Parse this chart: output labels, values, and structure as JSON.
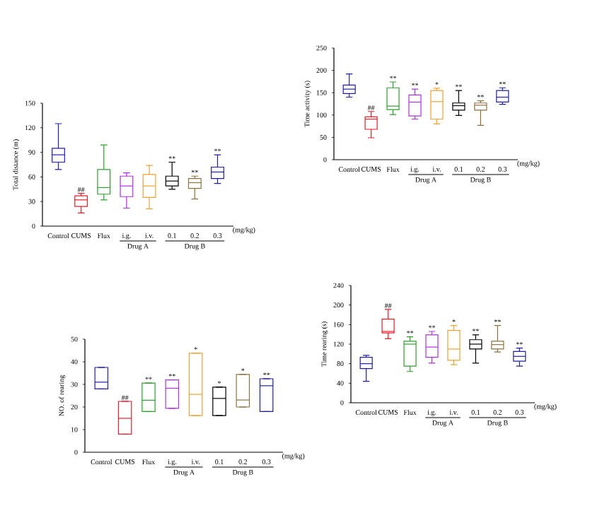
{
  "chart_data": [
    {
      "type": "box",
      "ylabel": "Total distance (m)",
      "categories": [
        "Control",
        "CUMS",
        "Flux",
        "i.g.",
        "i.v.",
        "0.1",
        "0.2",
        "0.3"
      ],
      "colors": [
        "#1f1fb0",
        "#e0202a",
        "#2ca02c",
        "#b030e0",
        "#f0a030",
        "#000000",
        "#8b7340",
        "#1f1fa0"
      ],
      "boxes": [
        {
          "low": 69,
          "q1": 78,
          "median": 87,
          "q3": 95,
          "high": 125
        },
        {
          "low": 16,
          "q1": 24,
          "median": 32,
          "q3": 37,
          "high": 40
        },
        {
          "low": 32,
          "q1": 39,
          "median": 47,
          "q3": 69,
          "high": 99
        },
        {
          "low": 22,
          "q1": 36,
          "median": 49,
          "q3": 61,
          "high": 65
        },
        {
          "low": 21,
          "q1": 35,
          "median": 49,
          "q3": 63,
          "high": 74
        },
        {
          "low": 45,
          "q1": 49,
          "median": 55,
          "q3": 61,
          "high": 78
        },
        {
          "low": 33,
          "q1": 46,
          "median": 53,
          "q3": 58,
          "high": 61
        },
        {
          "low": 52,
          "q1": 58,
          "median": 66,
          "q3": 72,
          "high": 87
        }
      ],
      "ylim": [
        0,
        150
      ],
      "yticks": [
        0,
        30,
        60,
        90,
        120,
        150
      ],
      "annotations": [
        {
          "text": "##",
          "x": "CUMS",
          "y": 40
        },
        {
          "text": "**",
          "x": "0.1",
          "y": 78
        },
        {
          "text": "**",
          "x": "0.2",
          "y": 61
        },
        {
          "text": "**",
          "x": "0.3",
          "y": 87
        },
        "Drug A",
        "Drug B",
        "(mg/kg)"
      ]
    },
    {
      "type": "box",
      "ylabel": "Time activity (s)",
      "categories": [
        "Control",
        "CUMS",
        "Flux",
        "i.g.",
        "i.v.",
        "0.1",
        "0.2",
        "0.3"
      ],
      "colors": [
        "#1f1fb0",
        "#e0202a",
        "#2ca02c",
        "#b030e0",
        "#f0a030",
        "#000000",
        "#8b7340",
        "#1f1fa0"
      ],
      "boxes": [
        {
          "low": 140,
          "q1": 148,
          "median": 158,
          "q3": 167,
          "high": 192
        },
        {
          "low": 49,
          "q1": 68,
          "median": 91,
          "q3": 96,
          "high": 108
        },
        {
          "low": 101,
          "q1": 112,
          "median": 120,
          "q3": 161,
          "high": 174
        },
        {
          "low": 91,
          "q1": 98,
          "median": 129,
          "q3": 145,
          "high": 158
        },
        {
          "low": 80,
          "q1": 91,
          "median": 130,
          "q3": 155,
          "high": 160
        },
        {
          "low": 99,
          "q1": 111,
          "median": 121,
          "q3": 127,
          "high": 155
        },
        {
          "low": 77,
          "q1": 111,
          "median": 122,
          "q3": 127,
          "high": 132
        },
        {
          "low": 124,
          "q1": 129,
          "median": 140,
          "q3": 155,
          "high": 161
        }
      ],
      "ylim": [
        0,
        250
      ],
      "yticks": [
        0,
        50,
        100,
        150,
        200,
        250
      ],
      "annotations": [
        {
          "text": "##",
          "x": "CUMS",
          "y": 108
        },
        {
          "text": "**",
          "x": "Flux",
          "y": 174
        },
        {
          "text": "**",
          "x": "i.g.",
          "y": 158
        },
        {
          "text": "*",
          "x": "i.v.",
          "y": 160
        },
        {
          "text": "**",
          "x": "0.1",
          "y": 155
        },
        {
          "text": "**",
          "x": "0.2",
          "y": 132
        },
        {
          "text": "**",
          "x": "0.3",
          "y": 161
        },
        "Drug A",
        "Drug B",
        "(mg/kg)"
      ]
    },
    {
      "type": "box",
      "ylabel": "NO. of rearing",
      "categories": [
        "Control",
        "CUMS",
        "Flux",
        "i.g.",
        "i.v.",
        "0.1",
        "0.2",
        "0.3"
      ],
      "colors": [
        "#1f1fb0",
        "#e0202a",
        "#2ca02c",
        "#b030e0",
        "#f0a030",
        "#000000",
        "#8b7340",
        "#1f1fa0"
      ],
      "boxes": [
        {
          "low": 28,
          "q1": 28,
          "median": 31,
          "q3": 37.5,
          "high": 37.5
        },
        {
          "low": 8,
          "q1": 8,
          "median": 15,
          "q3": 22.5,
          "high": 22.5
        },
        {
          "low": 18,
          "q1": 18,
          "median": 23,
          "q3": 30.6,
          "high": 30.6
        },
        {
          "low": 19.4,
          "q1": 19.4,
          "median": 28.3,
          "q3": 32,
          "high": 32
        },
        {
          "low": 16.2,
          "q1": 16.2,
          "median": 25.6,
          "q3": 43.8,
          "high": 43.8
        },
        {
          "low": 16.2,
          "q1": 16.2,
          "median": 23.8,
          "q3": 28.8,
          "high": 28.8
        },
        {
          "low": 20,
          "q1": 20,
          "median": 23.1,
          "q3": 34.4,
          "high": 34.4
        },
        {
          "low": 18,
          "q1": 18,
          "median": 29.4,
          "q3": 32.5,
          "high": 32.5
        }
      ],
      "ylim": [
        0,
        50
      ],
      "yticks": [
        0,
        10,
        20,
        30,
        40,
        50
      ],
      "annotations": [
        {
          "text": "##",
          "x": "CUMS",
          "y": 22.5
        },
        {
          "text": "**",
          "x": "Flux",
          "y": 30.6
        },
        {
          "text": "**",
          "x": "i.g.",
          "y": 32
        },
        {
          "text": "*",
          "x": "i.v.",
          "y": 43.8
        },
        {
          "text": "*",
          "x": "0.1",
          "y": 28.8
        },
        {
          "text": "*",
          "x": "0.2",
          "y": 34.4
        },
        {
          "text": "**",
          "x": "0.3",
          "y": 32.5
        },
        "Drug A",
        "Drug B",
        "(mg/kg)"
      ]
    },
    {
      "type": "box",
      "ylabel": "Time rearing (s)",
      "categories": [
        "Control",
        "CUMS",
        "Flux",
        "i.g.",
        "i.v.",
        "0.1",
        "0.2",
        "0.3"
      ],
      "colors": [
        "#1f1fa0",
        "#e0202a",
        "#2ca02c",
        "#b030e0",
        "#f0a030",
        "#000000",
        "#8b7340",
        "#1f1fa0"
      ],
      "boxes": [
        {
          "low": 44,
          "q1": 70,
          "median": 80,
          "q3": 93,
          "high": 97
        },
        {
          "low": 131,
          "q1": 143,
          "median": 146,
          "q3": 171,
          "high": 191
        },
        {
          "low": 64,
          "q1": 75,
          "median": 120,
          "q3": 126,
          "high": 135
        },
        {
          "low": 81,
          "q1": 93,
          "median": 114,
          "q3": 139,
          "high": 146
        },
        {
          "low": 78,
          "q1": 87,
          "median": 110,
          "q3": 148,
          "high": 158
        },
        {
          "low": 81,
          "q1": 110,
          "median": 120,
          "q3": 129,
          "high": 139
        },
        {
          "low": 104,
          "q1": 110,
          "median": 119,
          "q3": 126,
          "high": 158
        },
        {
          "low": 75,
          "q1": 85,
          "median": 95,
          "q3": 105,
          "high": 112
        }
      ],
      "ylim": [
        0,
        240
      ],
      "yticks": [
        0,
        40,
        80,
        120,
        160,
        200,
        240
      ],
      "annotations": [
        {
          "text": "##",
          "x": "CUMS",
          "y": 191
        },
        {
          "text": "**",
          "x": "Flux",
          "y": 135
        },
        {
          "text": "**",
          "x": "i.g.",
          "y": 146
        },
        {
          "text": "*",
          "x": "i.v.",
          "y": 158
        },
        {
          "text": "**",
          "x": "0.1",
          "y": 139
        },
        {
          "text": "**",
          "x": "0.2",
          "y": 158
        },
        {
          "text": "**",
          "x": "0.3",
          "y": 112
        },
        "Drug A",
        "Drug B",
        "(mg/kg)"
      ]
    }
  ]
}
